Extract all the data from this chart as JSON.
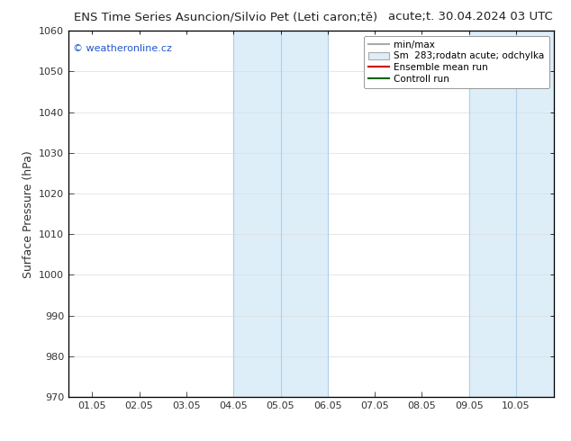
{
  "title_left": "ENS Time Series Asuncion/Silvio Pet (Leti caron;tě)",
  "title_right": "acute;t. 30.04.2024 03 UTC",
  "ylabel": "Surface Pressure (hPa)",
  "ylim": [
    970,
    1060
  ],
  "yticks": [
    970,
    980,
    990,
    1000,
    1010,
    1020,
    1030,
    1040,
    1050,
    1060
  ],
  "xtick_labels": [
    "01.05",
    "02.05",
    "03.05",
    "04.05",
    "05.05",
    "06.05",
    "07.05",
    "08.05",
    "09.05",
    "10.05"
  ],
  "xtick_positions": [
    0,
    1,
    2,
    3,
    4,
    5,
    6,
    7,
    8,
    9
  ],
  "xlim": [
    -0.5,
    9.8
  ],
  "shaded_regions": [
    {
      "x_start": 3,
      "x_end": 5,
      "color": "#ddeef9"
    },
    {
      "x_start": 8,
      "x_end": 9.8,
      "color": "#ddeef9"
    }
  ],
  "vlines": [
    {
      "x": 3,
      "color": "#b0cfe8",
      "lw": 0.8
    },
    {
      "x": 4,
      "color": "#b0cfe8",
      "lw": 0.8
    },
    {
      "x": 5,
      "color": "#b0cfe8",
      "lw": 0.8
    },
    {
      "x": 8,
      "color": "#b0cfe8",
      "lw": 0.8
    },
    {
      "x": 9,
      "color": "#b0cfe8",
      "lw": 0.8
    }
  ],
  "legend_labels": [
    "min/max",
    "Sm  283;rodatn acute; odchylka",
    "Ensemble mean run",
    "Controll run"
  ],
  "watermark_text": "© weatheronline.cz",
  "background_color": "#ffffff",
  "title_fontsize": 9.5,
  "tick_fontsize": 8,
  "ylabel_fontsize": 9
}
